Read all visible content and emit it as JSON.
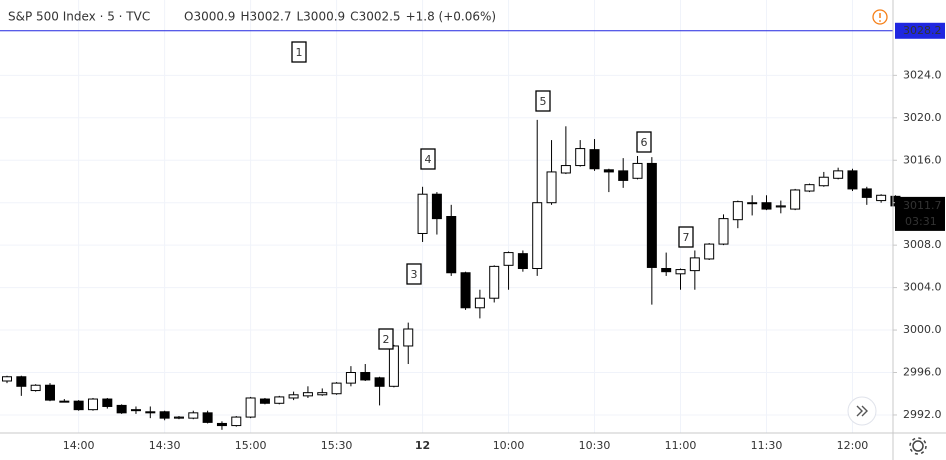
{
  "chart_data": {
    "type": "candlestick",
    "title": "S&P 500 Index · 5 · TVC",
    "ohlc_legend": [
      {
        "label": "O",
        "value": 3000.9
      },
      {
        "label": "H",
        "value": 3002.7
      },
      {
        "label": "L",
        "value": 3000.9
      },
      {
        "label": "C",
        "value": 3002.5
      }
    ],
    "change": "+1.8 (+0.06%)",
    "categories": [
      null,
      null,
      null,
      null,
      null,
      "14:00",
      null,
      null,
      null,
      null,
      null,
      "14:30",
      null,
      null,
      null,
      null,
      null,
      "15:00",
      null,
      null,
      null,
      null,
      null,
      "15:30",
      null,
      null,
      null,
      null,
      null,
      "12",
      null,
      null,
      null,
      null,
      null,
      "10:00",
      null,
      null,
      null,
      null,
      null,
      "10:30",
      null,
      null,
      null,
      null,
      null,
      "11:00",
      null,
      null,
      null,
      null,
      null,
      "11:30",
      null,
      null,
      null,
      null,
      null,
      "12:00",
      null,
      null,
      null
    ],
    "open": [
      2995.2,
      2995.6,
      2994.3,
      2994.8,
      2993.3,
      2993.3,
      2992.5,
      2993.5,
      2992.9,
      2992.5,
      2992.3,
      2992.3,
      2991.7,
      2991.7,
      2992.2,
      2991.2,
      2991.0,
      2991.8,
      2993.5,
      2993.1,
      2993.6,
      2993.8,
      2993.9,
      2994.0,
      2995.0,
      2996.0,
      2995.5,
      2994.7,
      2998.5,
      3009.1,
      3012.8,
      3010.7,
      3005.4,
      3002.1,
      3003.0,
      3006.1,
      3007.2,
      3005.8,
      3012.0,
      3014.8,
      3015.5,
      3017.0,
      3015.1,
      3015.0,
      3014.3,
      3015.7,
      3005.8,
      3005.3,
      3005.6,
      3006.7,
      3008.1,
      3010.4,
      3012.0,
      3012.0,
      3011.6,
      3011.4,
      3013.1,
      3013.6,
      3014.3,
      3015.0,
      3013.3,
      3012.2,
      3012.6
    ],
    "high": [
      2995.7,
      2995.7,
      2994.9,
      2995.0,
      2993.5,
      2993.4,
      2993.6,
      2993.6,
      2993.0,
      2992.8,
      2992.8,
      2992.4,
      2991.9,
      2992.4,
      2992.4,
      2991.4,
      2991.9,
      2993.7,
      2993.6,
      2993.8,
      2994.2,
      2994.7,
      2994.5,
      2995.1,
      2996.6,
      2996.8,
      2995.6,
      2998.6,
      3000.7,
      3013.5,
      3013.0,
      3011.8,
      3005.5,
      3003.8,
      3006.1,
      3007.4,
      3007.5,
      3019.8,
      3017.9,
      3019.2,
      3017.9,
      3018.0,
      3015.2,
      3016.2,
      3016.4,
      3016.3,
      3007.3,
      3005.8,
      3007.5,
      3008.2,
      3010.9,
      3012.2,
      3012.7,
      3012.7,
      3012.2,
      3013.3,
      3013.8,
      3014.9,
      3015.3,
      3015.2,
      3013.5,
      3012.8,
      3012.7
    ],
    "low": [
      2995.0,
      2993.8,
      2994.2,
      2993.3,
      2993.2,
      2992.4,
      2992.4,
      2992.6,
      2992.1,
      2992.1,
      2991.7,
      2991.5,
      2991.6,
      2991.6,
      2991.2,
      2990.6,
      2990.9,
      2991.7,
      2993.0,
      2993.0,
      2993.4,
      2993.6,
      2993.8,
      2993.9,
      2994.7,
      2995.2,
      2992.9,
      2994.6,
      2996.8,
      3008.3,
      3009.0,
      3005.1,
      3001.9,
      3001.1,
      3002.6,
      3003.8,
      3005.5,
      3005.1,
      3011.8,
      3014.7,
      3015.4,
      3015.0,
      3013.0,
      3013.4,
      3014.2,
      3002.4,
      3005.1,
      3003.8,
      3003.8,
      3006.6,
      3008.0,
      3009.6,
      3010.8,
      3011.3,
      3011.0,
      3011.3,
      3013.0,
      3013.5,
      3014.2,
      3013.1,
      3011.8,
      3012.0,
      3011.4
    ],
    "close": [
      2995.6,
      2994.7,
      2994.8,
      2993.4,
      2993.3,
      2992.5,
      2993.5,
      2992.8,
      2992.2,
      2992.5,
      2992.2,
      2991.7,
      2991.8,
      2992.2,
      2991.3,
      2991.0,
      2991.8,
      2993.6,
      2993.1,
      2993.7,
      2993.9,
      2994.1,
      2994.1,
      2995.0,
      2996.0,
      2995.3,
      2994.7,
      2998.5,
      3000.1,
      3012.8,
      3010.5,
      3005.4,
      3002.1,
      3003.0,
      3006.0,
      3007.3,
      3005.8,
      3012.0,
      3014.9,
      3015.5,
      3017.1,
      3015.2,
      3014.9,
      3014.1,
      3015.7,
      3005.9,
      3005.5,
      3005.7,
      3006.8,
      3008.1,
      3010.5,
      3012.1,
      3012.0,
      3011.4,
      3011.7,
      3013.2,
      3013.7,
      3014.4,
      3015.0,
      3013.3,
      3012.5,
      3012.7,
      3011.7
    ],
    "up_color": "#ffffff",
    "down_color": "#000000",
    "wick_color": "#000000",
    "ylim": [
      2990.3,
      3031.1
    ],
    "yticks": [
      {
        "value": 2992,
        "label": "2992.0"
      },
      {
        "value": 2996,
        "label": "2996.0"
      },
      {
        "value": 3000,
        "label": "3000.0"
      },
      {
        "value": 3004,
        "label": "3004.0"
      },
      {
        "value": 3008,
        "label": "3008.0"
      },
      {
        "value": 3012,
        "label": "3012.0"
      },
      {
        "value": 3016,
        "label": "3016.0"
      },
      {
        "value": 3020,
        "label": "3020.0"
      },
      {
        "value": 3024,
        "label": "3024.0"
      }
    ],
    "grid": true,
    "price_line": {
      "value": 3028.2,
      "color": "#2027e0"
    },
    "countdown": "03:31",
    "annotations": [
      "1",
      "2",
      "3",
      "4",
      "5",
      "6",
      "7"
    ]
  }
}
